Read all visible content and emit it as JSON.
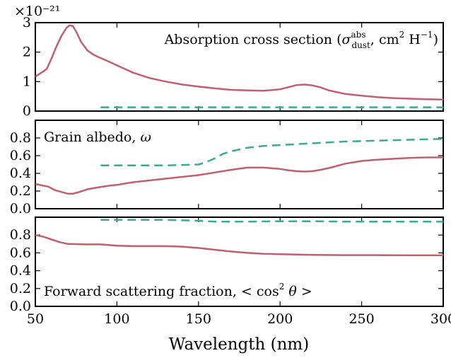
{
  "chart_data": [
    {
      "type": "line",
      "xlim": [
        50,
        300
      ],
      "ylim": [
        0,
        3
      ],
      "yticks": [
        "0",
        "1",
        "2",
        "3"
      ],
      "ytick_values": [
        0,
        1,
        2,
        3
      ],
      "offset_label": "×10⁻²¹",
      "annotation": "Absorption cross section (σ_dust^abs, cm² H⁻¹)",
      "legend_position": "top-right",
      "series": [
        {
          "style": "solid",
          "color": "#c0606e",
          "x": [
            50,
            55,
            57,
            60,
            63,
            66,
            69,
            71,
            73,
            75,
            78,
            82,
            86,
            90,
            95,
            100,
            110,
            120,
            130,
            140,
            150,
            160,
            170,
            180,
            190,
            200,
            205,
            210,
            215,
            220,
            225,
            230,
            240,
            250,
            260,
            270,
            280,
            290,
            300
          ],
          "y": [
            1.17,
            1.35,
            1.43,
            1.8,
            2.2,
            2.55,
            2.82,
            2.91,
            2.88,
            2.7,
            2.35,
            2.05,
            1.9,
            1.8,
            1.68,
            1.55,
            1.3,
            1.12,
            1.0,
            0.9,
            0.83,
            0.77,
            0.72,
            0.7,
            0.69,
            0.74,
            0.81,
            0.88,
            0.9,
            0.87,
            0.8,
            0.7,
            0.58,
            0.52,
            0.47,
            0.44,
            0.42,
            0.4,
            0.39
          ]
        },
        {
          "style": "dashed",
          "color": "#3aaa96",
          "x": [
            90,
            120,
            150,
            180,
            210,
            240,
            270,
            300
          ],
          "y": [
            0.13,
            0.13,
            0.13,
            0.13,
            0.13,
            0.13,
            0.13,
            0.13
          ]
        }
      ]
    },
    {
      "type": "line",
      "xlim": [
        50,
        300
      ],
      "ylim": [
        0,
        1
      ],
      "yticks": [
        "0.0",
        "0.2",
        "0.4",
        "0.6",
        "0.8"
      ],
      "ytick_values": [
        0,
        0.2,
        0.4,
        0.6,
        0.8
      ],
      "annotation": "Grain albedo, ω",
      "legend_position": "top-left",
      "series": [
        {
          "style": "solid",
          "color": "#c0606e",
          "x": [
            50,
            55,
            58,
            62,
            66,
            70,
            73,
            77,
            82,
            88,
            95,
            100,
            110,
            120,
            130,
            140,
            150,
            160,
            170,
            180,
            190,
            200,
            205,
            210,
            215,
            220,
            225,
            230,
            240,
            250,
            260,
            270,
            280,
            290,
            300
          ],
          "y": [
            0.28,
            0.26,
            0.25,
            0.21,
            0.19,
            0.17,
            0.17,
            0.19,
            0.22,
            0.24,
            0.26,
            0.27,
            0.3,
            0.32,
            0.34,
            0.36,
            0.38,
            0.41,
            0.44,
            0.465,
            0.465,
            0.45,
            0.435,
            0.425,
            0.42,
            0.425,
            0.44,
            0.46,
            0.51,
            0.54,
            0.555,
            0.565,
            0.575,
            0.58,
            0.58
          ]
        },
        {
          "style": "dashed",
          "color": "#3aaa96",
          "x": [
            90,
            110,
            130,
            150,
            155,
            160,
            165,
            170,
            180,
            190,
            200,
            220,
            240,
            260,
            280,
            300
          ],
          "y": [
            0.49,
            0.49,
            0.49,
            0.5,
            0.53,
            0.57,
            0.62,
            0.65,
            0.69,
            0.71,
            0.72,
            0.74,
            0.76,
            0.77,
            0.78,
            0.79
          ]
        }
      ]
    },
    {
      "type": "line",
      "xlim": [
        50,
        300
      ],
      "ylim": [
        0,
        1
      ],
      "yticks": [
        "0.0",
        "0.2",
        "0.4",
        "0.6",
        "0.8"
      ],
      "ytick_values": [
        0,
        0.2,
        0.4,
        0.6,
        0.8
      ],
      "xticks": [
        "50",
        "100",
        "150",
        "200",
        "250",
        "300"
      ],
      "xtick_values": [
        50,
        100,
        150,
        200,
        250,
        300
      ],
      "xlabel": "Wavelength (nm)",
      "annotation": "Forward scattering fraction, < cos² θ >",
      "legend_position": "bottom-left",
      "series": [
        {
          "style": "solid",
          "color": "#c0606e",
          "x": [
            50,
            55,
            60,
            65,
            70,
            80,
            90,
            100,
            110,
            120,
            130,
            140,
            150,
            160,
            170,
            180,
            190,
            200,
            220,
            240,
            260,
            280,
            300
          ],
          "y": [
            0.8,
            0.78,
            0.75,
            0.72,
            0.7,
            0.695,
            0.695,
            0.68,
            0.675,
            0.675,
            0.675,
            0.67,
            0.655,
            0.635,
            0.615,
            0.6,
            0.59,
            0.585,
            0.578,
            0.575,
            0.575,
            0.572,
            0.572
          ]
        },
        {
          "style": "dashed",
          "color": "#3aaa96",
          "x": [
            90,
            110,
            130,
            150,
            160,
            180,
            200,
            220,
            240,
            260,
            280,
            300
          ],
          "y": [
            0.97,
            0.97,
            0.97,
            0.96,
            0.95,
            0.95,
            0.955,
            0.955,
            0.95,
            0.95,
            0.95,
            0.95
          ]
        }
      ]
    }
  ]
}
